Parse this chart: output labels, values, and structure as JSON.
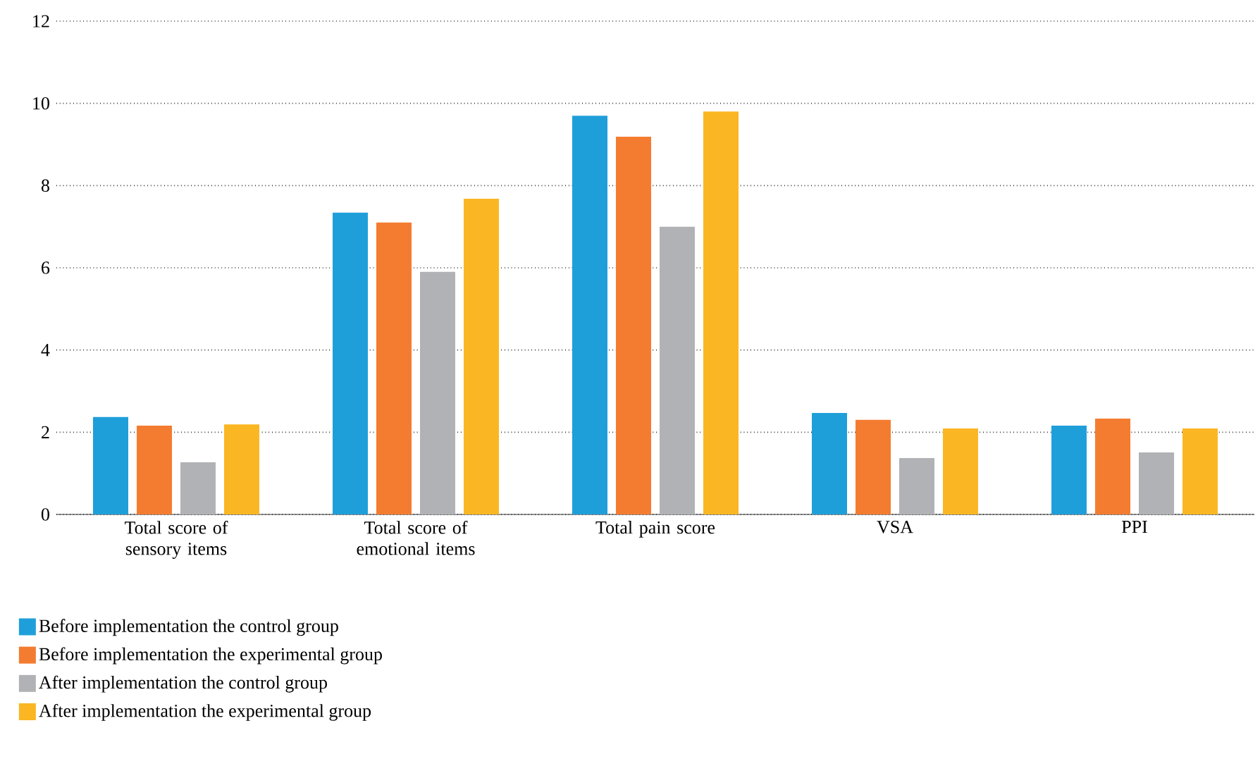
{
  "chart_data": {
    "type": "bar",
    "categories": [
      "Total score of sensory items",
      "Total score of emotional items",
      "Total pain score",
      "VSA",
      "PPI"
    ],
    "series": [
      {
        "name": "Before implementation the control group",
        "color": "#1f9fda",
        "values": [
          2.37,
          7.34,
          9.7,
          2.47,
          2.16
        ]
      },
      {
        "name": "Before implementation the experimental group",
        "color": "#f47c30",
        "values": [
          2.16,
          7.1,
          9.19,
          2.3,
          2.33
        ]
      },
      {
        "name": "After implementation the control group",
        "color": "#b1b2b5",
        "values": [
          1.27,
          5.9,
          7.0,
          1.37,
          1.51
        ]
      },
      {
        "name": "After implementation the experimental group",
        "color": "#fbb623",
        "values": [
          2.19,
          7.68,
          9.8,
          2.09,
          2.09
        ]
      }
    ],
    "ylim": [
      0,
      12
    ],
    "yticks": [
      0,
      2,
      4,
      6,
      8,
      10,
      12
    ],
    "grid": "y",
    "legend": "bottom"
  }
}
